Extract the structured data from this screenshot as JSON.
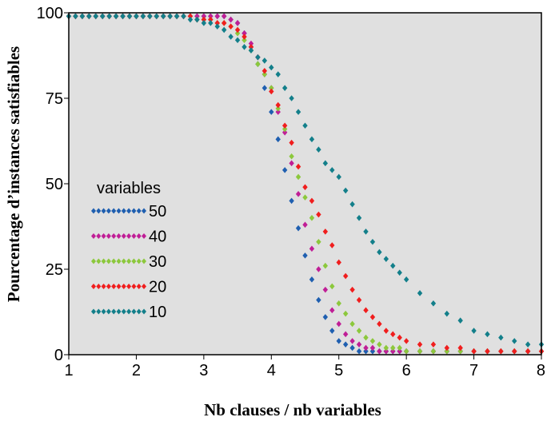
{
  "chart_data": {
    "type": "scatter",
    "title": "",
    "xlabel": "Nb clauses / nb variables",
    "ylabel": "Pourcentage d’instances satisfiables",
    "xlim": [
      1,
      8
    ],
    "ylim": [
      0,
      100
    ],
    "x_ticks": [
      "1",
      "2",
      "3",
      "4",
      "5",
      "6",
      "7",
      "8"
    ],
    "y_ticks": [
      "0",
      "25",
      "50",
      "75",
      "100"
    ],
    "grid": false,
    "background": "#e0e0e0",
    "legend": {
      "title": "variables",
      "placement": "left-middle",
      "entries": [
        "50",
        "40",
        "30",
        "20",
        "10"
      ]
    },
    "series": [
      {
        "name": "50",
        "color": "#1f5fb0",
        "points": [
          [
            1,
            99
          ],
          [
            1.1,
            99
          ],
          [
            1.2,
            99
          ],
          [
            1.3,
            99
          ],
          [
            1.4,
            99
          ],
          [
            1.5,
            99
          ],
          [
            1.6,
            99
          ],
          [
            1.7,
            99
          ],
          [
            1.8,
            99
          ],
          [
            1.9,
            99
          ],
          [
            2,
            99
          ],
          [
            2.1,
            99
          ],
          [
            2.2,
            99
          ],
          [
            2.3,
            99
          ],
          [
            2.4,
            99
          ],
          [
            2.5,
            99
          ],
          [
            2.6,
            99
          ],
          [
            2.7,
            99
          ],
          [
            2.8,
            99
          ],
          [
            2.9,
            99
          ],
          [
            3,
            99
          ],
          [
            3.1,
            99
          ],
          [
            3.2,
            99
          ],
          [
            3.3,
            99
          ],
          [
            3.4,
            98
          ],
          [
            3.5,
            97
          ],
          [
            3.6,
            94
          ],
          [
            3.7,
            90
          ],
          [
            3.8,
            85
          ],
          [
            3.9,
            78
          ],
          [
            4,
            71
          ],
          [
            4.1,
            63
          ],
          [
            4.2,
            54
          ],
          [
            4.3,
            45
          ],
          [
            4.4,
            37
          ],
          [
            4.5,
            29
          ],
          [
            4.6,
            22
          ],
          [
            4.7,
            16
          ],
          [
            4.8,
            11
          ],
          [
            4.9,
            7
          ],
          [
            5,
            4
          ],
          [
            5.1,
            3
          ],
          [
            5.2,
            2
          ],
          [
            5.3,
            1
          ],
          [
            5.4,
            1
          ],
          [
            5.5,
            1
          ],
          [
            5.6,
            1
          ],
          [
            5.7,
            1
          ],
          [
            5.8,
            1
          ],
          [
            5.9,
            1
          ],
          [
            6,
            1
          ],
          [
            6.2,
            1
          ],
          [
            6.4,
            1
          ],
          [
            6.6,
            1
          ],
          [
            6.8,
            1
          ],
          [
            7,
            1
          ],
          [
            7.2,
            1
          ],
          [
            7.4,
            1
          ],
          [
            7.6,
            1
          ],
          [
            7.8,
            1
          ],
          [
            8,
            1
          ]
        ]
      },
      {
        "name": "40",
        "color": "#c01e96",
        "points": [
          [
            1,
            99
          ],
          [
            1.1,
            99
          ],
          [
            1.2,
            99
          ],
          [
            1.3,
            99
          ],
          [
            1.4,
            99
          ],
          [
            1.5,
            99
          ],
          [
            1.6,
            99
          ],
          [
            1.7,
            99
          ],
          [
            1.8,
            99
          ],
          [
            1.9,
            99
          ],
          [
            2,
            99
          ],
          [
            2.1,
            99
          ],
          [
            2.2,
            99
          ],
          [
            2.3,
            99
          ],
          [
            2.4,
            99
          ],
          [
            2.5,
            99
          ],
          [
            2.6,
            99
          ],
          [
            2.7,
            99
          ],
          [
            2.8,
            99
          ],
          [
            2.9,
            99
          ],
          [
            3,
            99
          ],
          [
            3.1,
            99
          ],
          [
            3.2,
            99
          ],
          [
            3.3,
            99
          ],
          [
            3.4,
            98
          ],
          [
            3.5,
            97
          ],
          [
            3.6,
            94
          ],
          [
            3.7,
            91
          ],
          [
            3.8,
            87
          ],
          [
            3.9,
            82
          ],
          [
            4,
            78
          ],
          [
            4.1,
            71
          ],
          [
            4.2,
            65
          ],
          [
            4.3,
            56
          ],
          [
            4.4,
            47
          ],
          [
            4.5,
            38
          ],
          [
            4.6,
            31
          ],
          [
            4.7,
            25
          ],
          [
            4.8,
            19
          ],
          [
            4.9,
            13
          ],
          [
            5,
            9
          ],
          [
            5.1,
            6
          ],
          [
            5.2,
            4
          ],
          [
            5.3,
            3
          ],
          [
            5.4,
            2
          ],
          [
            5.5,
            2
          ],
          [
            5.6,
            1
          ],
          [
            5.7,
            1
          ],
          [
            5.8,
            1
          ],
          [
            5.9,
            1
          ],
          [
            6,
            1
          ],
          [
            6.2,
            1
          ],
          [
            6.4,
            1
          ],
          [
            6.6,
            1
          ],
          [
            6.8,
            1
          ],
          [
            7,
            1
          ],
          [
            7.2,
            1
          ],
          [
            7.4,
            1
          ],
          [
            7.6,
            1
          ],
          [
            7.8,
            1
          ],
          [
            8,
            1
          ]
        ]
      },
      {
        "name": "30",
        "color": "#8cc83c",
        "points": [
          [
            1,
            99
          ],
          [
            1.1,
            99
          ],
          [
            1.2,
            99
          ],
          [
            1.3,
            99
          ],
          [
            1.4,
            99
          ],
          [
            1.5,
            99
          ],
          [
            1.6,
            99
          ],
          [
            1.7,
            99
          ],
          [
            1.8,
            99
          ],
          [
            1.9,
            99
          ],
          [
            2,
            99
          ],
          [
            2.1,
            99
          ],
          [
            2.2,
            99
          ],
          [
            2.3,
            99
          ],
          [
            2.4,
            99
          ],
          [
            2.5,
            99
          ],
          [
            2.6,
            99
          ],
          [
            2.7,
            99
          ],
          [
            2.8,
            99
          ],
          [
            2.9,
            98
          ],
          [
            3,
            98
          ],
          [
            3.1,
            98
          ],
          [
            3.2,
            97
          ],
          [
            3.3,
            97
          ],
          [
            3.4,
            96
          ],
          [
            3.5,
            94
          ],
          [
            3.6,
            92
          ],
          [
            3.7,
            89
          ],
          [
            3.8,
            85
          ],
          [
            3.9,
            82
          ],
          [
            4,
            78
          ],
          [
            4.1,
            72
          ],
          [
            4.2,
            66
          ],
          [
            4.3,
            58
          ],
          [
            4.4,
            52
          ],
          [
            4.5,
            46
          ],
          [
            4.6,
            40
          ],
          [
            4.7,
            33
          ],
          [
            4.8,
            26
          ],
          [
            4.9,
            20
          ],
          [
            5,
            15
          ],
          [
            5.1,
            12
          ],
          [
            5.2,
            9
          ],
          [
            5.3,
            7
          ],
          [
            5.4,
            5
          ],
          [
            5.5,
            4
          ],
          [
            5.6,
            3
          ],
          [
            5.7,
            2
          ],
          [
            5.8,
            2
          ],
          [
            5.9,
            2
          ],
          [
            6,
            1
          ],
          [
            6.2,
            1
          ],
          [
            6.4,
            1
          ],
          [
            6.6,
            1
          ],
          [
            6.8,
            1
          ],
          [
            7,
            1
          ],
          [
            7.2,
            1
          ],
          [
            7.4,
            1
          ],
          [
            7.6,
            1
          ],
          [
            7.8,
            1
          ],
          [
            8,
            1
          ]
        ]
      },
      {
        "name": "20",
        "color": "#f01e1e",
        "points": [
          [
            1,
            99
          ],
          [
            1.1,
            99
          ],
          [
            1.2,
            99
          ],
          [
            1.3,
            99
          ],
          [
            1.4,
            99
          ],
          [
            1.5,
            99
          ],
          [
            1.6,
            99
          ],
          [
            1.7,
            99
          ],
          [
            1.8,
            99
          ],
          [
            1.9,
            99
          ],
          [
            2,
            99
          ],
          [
            2.1,
            99
          ],
          [
            2.2,
            99
          ],
          [
            2.3,
            99
          ],
          [
            2.4,
            99
          ],
          [
            2.5,
            99
          ],
          [
            2.6,
            99
          ],
          [
            2.7,
            99
          ],
          [
            2.8,
            99
          ],
          [
            2.9,
            98
          ],
          [
            3,
            98
          ],
          [
            3.1,
            98
          ],
          [
            3.2,
            97
          ],
          [
            3.3,
            97
          ],
          [
            3.4,
            96
          ],
          [
            3.5,
            95
          ],
          [
            3.6,
            93
          ],
          [
            3.7,
            90
          ],
          [
            3.8,
            87
          ],
          [
            3.9,
            83
          ],
          [
            4,
            77
          ],
          [
            4.1,
            73
          ],
          [
            4.2,
            67
          ],
          [
            4.3,
            62
          ],
          [
            4.4,
            55
          ],
          [
            4.5,
            49
          ],
          [
            4.6,
            45
          ],
          [
            4.7,
            41
          ],
          [
            4.8,
            36
          ],
          [
            4.9,
            32
          ],
          [
            5,
            27
          ],
          [
            5.1,
            23
          ],
          [
            5.2,
            19
          ],
          [
            5.3,
            16
          ],
          [
            5.4,
            13
          ],
          [
            5.5,
            11
          ],
          [
            5.6,
            9
          ],
          [
            5.7,
            7
          ],
          [
            5.8,
            6
          ],
          [
            5.9,
            5
          ],
          [
            6,
            4
          ],
          [
            6.2,
            3
          ],
          [
            6.4,
            3
          ],
          [
            6.6,
            2
          ],
          [
            6.8,
            2
          ],
          [
            7,
            1
          ],
          [
            7.2,
            1
          ],
          [
            7.4,
            1
          ],
          [
            7.6,
            1
          ],
          [
            7.8,
            1
          ],
          [
            8,
            1
          ]
        ]
      },
      {
        "name": "10",
        "color": "#137f8a",
        "points": [
          [
            1,
            99
          ],
          [
            1.1,
            99
          ],
          [
            1.2,
            99
          ],
          [
            1.3,
            99
          ],
          [
            1.4,
            99
          ],
          [
            1.5,
            99
          ],
          [
            1.6,
            99
          ],
          [
            1.7,
            99
          ],
          [
            1.8,
            99
          ],
          [
            1.9,
            99
          ],
          [
            2,
            99
          ],
          [
            2.1,
            99
          ],
          [
            2.2,
            99
          ],
          [
            2.3,
            99
          ],
          [
            2.4,
            99
          ],
          [
            2.5,
            99
          ],
          [
            2.6,
            99
          ],
          [
            2.7,
            99
          ],
          [
            2.8,
            98
          ],
          [
            2.9,
            98
          ],
          [
            3,
            97
          ],
          [
            3.1,
            97
          ],
          [
            3.2,
            96
          ],
          [
            3.3,
            95
          ],
          [
            3.4,
            93
          ],
          [
            3.5,
            92
          ],
          [
            3.6,
            90
          ],
          [
            3.7,
            89
          ],
          [
            3.8,
            87
          ],
          [
            3.9,
            86
          ],
          [
            4,
            84
          ],
          [
            4.1,
            82
          ],
          [
            4.2,
            78
          ],
          [
            4.3,
            75
          ],
          [
            4.4,
            71
          ],
          [
            4.5,
            67
          ],
          [
            4.6,
            63
          ],
          [
            4.7,
            60
          ],
          [
            4.8,
            56
          ],
          [
            4.9,
            54
          ],
          [
            5,
            52
          ],
          [
            5.1,
            48
          ],
          [
            5.2,
            44
          ],
          [
            5.3,
            40
          ],
          [
            5.4,
            36
          ],
          [
            5.5,
            33
          ],
          [
            5.6,
            30
          ],
          [
            5.7,
            28
          ],
          [
            5.8,
            26
          ],
          [
            5.9,
            24
          ],
          [
            6,
            22
          ],
          [
            6.2,
            18
          ],
          [
            6.4,
            15
          ],
          [
            6.6,
            12
          ],
          [
            6.8,
            10
          ],
          [
            7,
            7
          ],
          [
            7.2,
            6
          ],
          [
            7.4,
            5
          ],
          [
            7.6,
            4
          ],
          [
            7.8,
            3
          ],
          [
            8,
            3
          ]
        ]
      }
    ]
  }
}
